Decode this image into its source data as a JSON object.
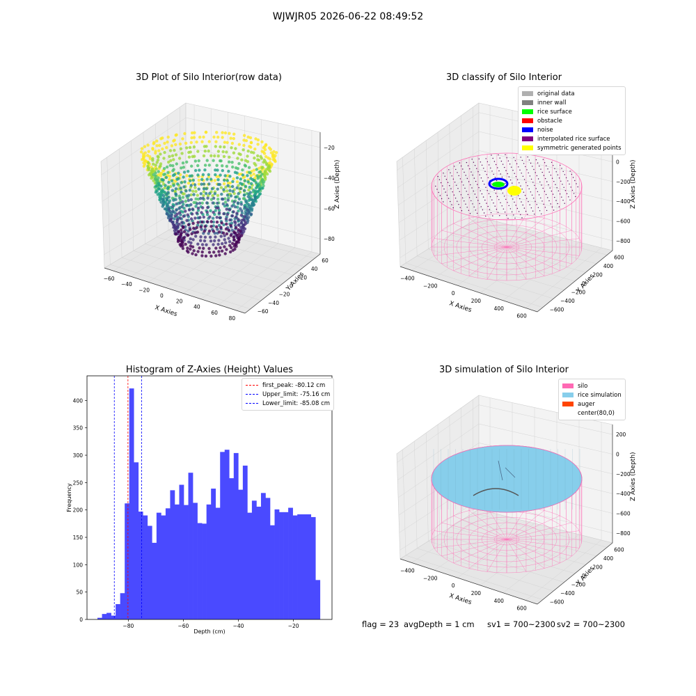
{
  "suptitle": "WJWJR05 2026-06-22 08:49:52",
  "panels": {
    "raw": {
      "title": "3D Plot of Silo Interior(row data)",
      "x_ticks": [
        "−60",
        "−40",
        "−20",
        "0",
        "20",
        "40",
        "60",
        "80"
      ],
      "y_ticks": [
        "−60",
        "−40",
        "−20",
        "0",
        "20",
        "40",
        "60"
      ],
      "z_ticks": [
        "−20",
        "−40",
        "−60",
        "−80"
      ],
      "x_label": "X Axies",
      "y_label": "Y Axies",
      "z_label": "Z Axies (Depth)"
    },
    "classify": {
      "title": "3D classify of Silo Interior",
      "x_ticks": [
        "−400",
        "−200",
        "0",
        "200",
        "400",
        "600"
      ],
      "y_ticks": [
        "−600",
        "−400",
        "−200",
        "0",
        "200",
        "400",
        "600"
      ],
      "z_ticks": [
        "200",
        "0",
        "−200",
        "−400",
        "−600",
        "−800"
      ],
      "x_label": "X Axies",
      "y_label": "Y Axies",
      "z_label": "Z Axies (Depth)",
      "legend": [
        {
          "label": "original data",
          "color": "#b0b0b0"
        },
        {
          "label": "inner wall",
          "color": "#808080"
        },
        {
          "label": "rice surface",
          "color": "#00ff00"
        },
        {
          "label": "obstacle",
          "color": "#ff0000"
        },
        {
          "label": "noise",
          "color": "#0000ff"
        },
        {
          "label": "interpolated rice surface",
          "color": "#800080"
        },
        {
          "label": "symmetric generated points",
          "color": "#ffff00"
        }
      ]
    },
    "simulation": {
      "title": "3D simulation of Silo Interior",
      "x_ticks": [
        "−400",
        "−200",
        "0",
        "200",
        "400",
        "600"
      ],
      "y_ticks": [
        "−600",
        "−400",
        "−200",
        "0",
        "200",
        "400",
        "600"
      ],
      "z_ticks": [
        "200",
        "0",
        "−200",
        "−400",
        "−600",
        "−800"
      ],
      "x_label": "X Axies",
      "y_label": "Y Axies",
      "z_label": "Z Axies (Depth)",
      "legend": [
        {
          "label": "silo",
          "color": "#ff69b4"
        },
        {
          "label": "rice simulation",
          "color": "#87ceeb"
        },
        {
          "label": "auger",
          "color": "#ff4500"
        },
        {
          "label": "center(80,0)",
          "color": ""
        }
      ]
    }
  },
  "chart_data": {
    "type": "bar",
    "title": "Histogram of Z-Axies (Height) Values",
    "xlabel": "Depth (cm)",
    "ylabel": "Frequency",
    "xlim": [
      -95,
      -6
    ],
    "ylim": [
      0,
      445
    ],
    "bin_width": 1.65,
    "bin_start": -91.2,
    "x_ticks": [
      -80,
      -60,
      -40,
      -20
    ],
    "x_tick_labels": [
      "−80",
      "−60",
      "−40",
      "−20"
    ],
    "y_ticks": [
      0,
      50,
      100,
      150,
      200,
      250,
      300,
      350,
      400
    ],
    "values": [
      3,
      10,
      12,
      7,
      28,
      48,
      212,
      422,
      287,
      197,
      190,
      171,
      140,
      195,
      190,
      203,
      236,
      210,
      246,
      209,
      268,
      213,
      176,
      175,
      210,
      239,
      204,
      306,
      310,
      258,
      304,
      237,
      281,
      195,
      217,
      206,
      231,
      222,
      172,
      201,
      196,
      196,
      204,
      190,
      192,
      192,
      192,
      187,
      72
    ],
    "bar_color": "#4a4aff",
    "legend_position": "top-right",
    "lines": [
      {
        "label": "first_peak: -80.12 cm",
        "x": -80.12,
        "color": "#ff0000"
      },
      {
        "label": "Upper_limit: -75.16 cm",
        "x": -75.16,
        "color": "#0000ff"
      },
      {
        "label": "Lower_limit: -85.08 cm",
        "x": -85.08,
        "color": "#0000ff"
      }
    ]
  },
  "status": {
    "flag": "flag = 23",
    "avg_depth": "avgDepth = 1 cm",
    "sv1": "sv1 = 700~2300",
    "sv2": "sv2 = 700~2300"
  }
}
